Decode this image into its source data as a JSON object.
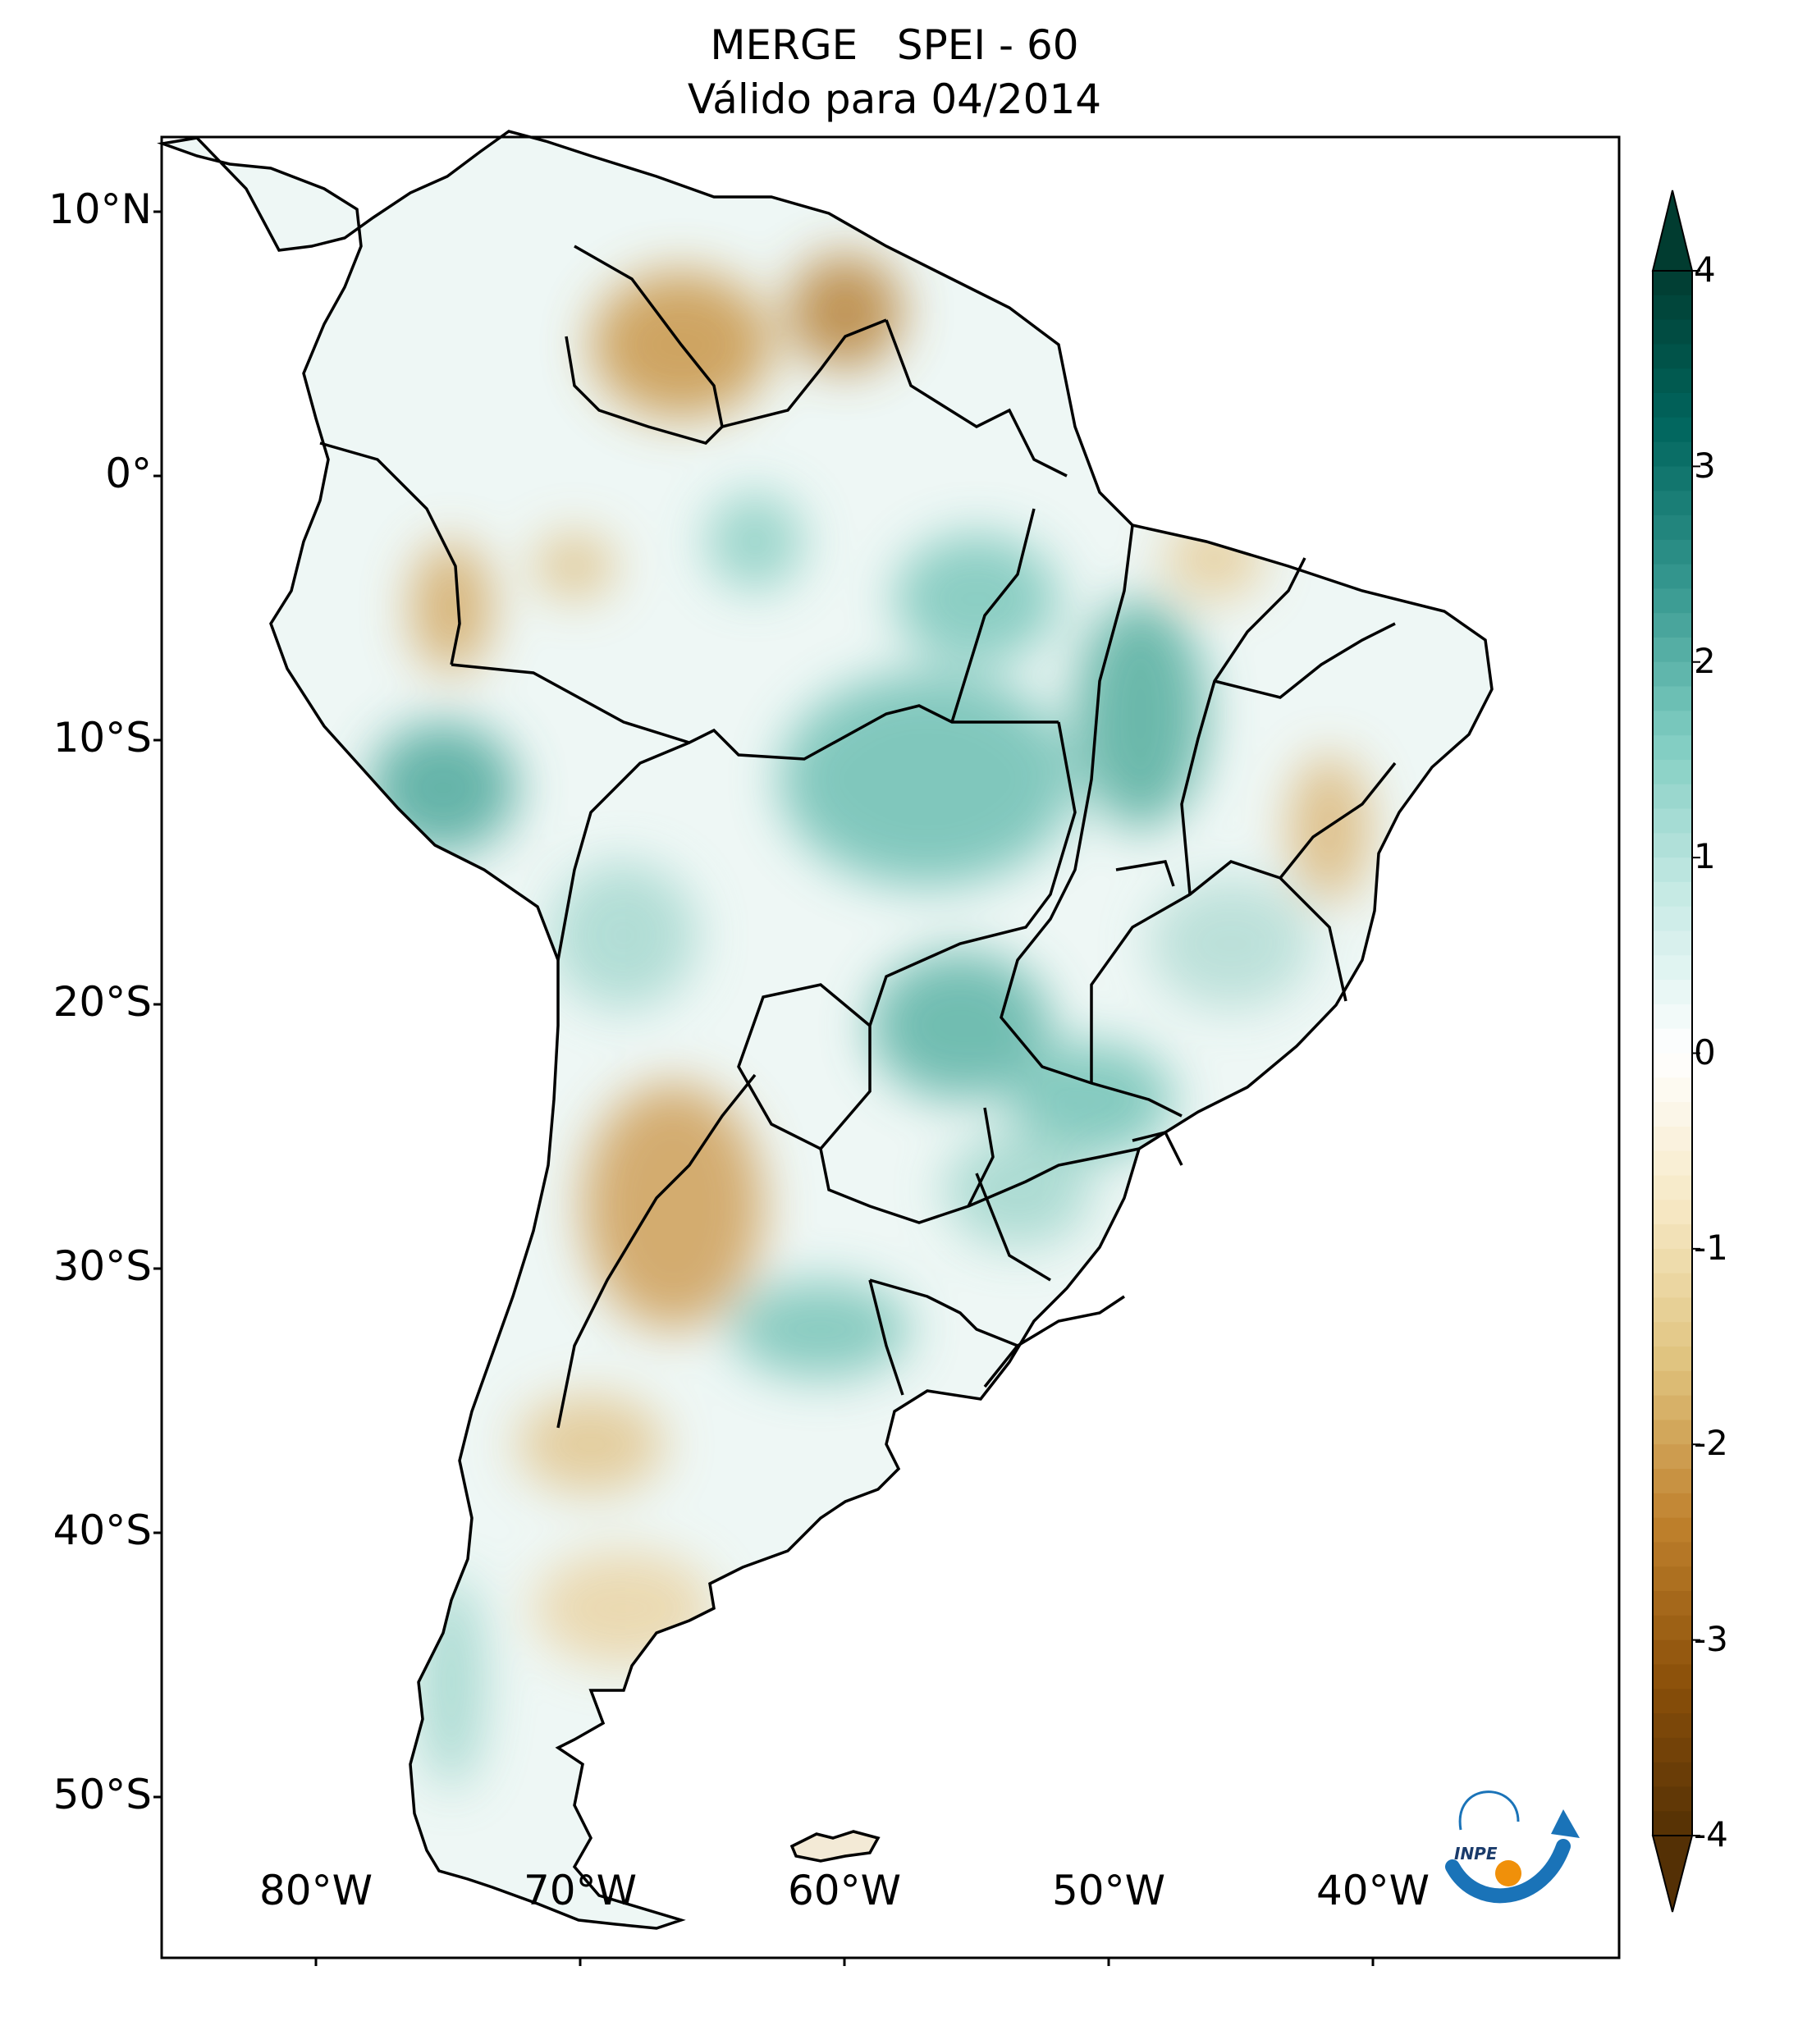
{
  "title": {
    "line1": "MERGE   SPEI - 60",
    "line2": "Válido para 04/2014"
  },
  "lat_labels": [
    "10°N",
    "0°",
    "10°S",
    "20°S",
    "30°S",
    "40°S",
    "50°S"
  ],
  "lon_labels": [
    "80°W",
    "70°W",
    "60°W",
    "50°W",
    "40°W"
  ],
  "colorbar": {
    "ticks": [
      "4",
      "3",
      "2",
      "1",
      "0",
      "-1",
      "-2",
      "-3",
      "-4"
    ],
    "colors": [
      "#013c30",
      "#01665e",
      "#35978f",
      "#80cdc1",
      "#c7eae5",
      "#ffffff",
      "#f6e8c3",
      "#dfc27d",
      "#bf812d",
      "#8c510a",
      "#543005"
    ]
  },
  "logo": {
    "text": "INPE",
    "arrow_color": "#1a73b8",
    "dot_color": "#f0900a"
  },
  "colors": {
    "wet": "#5fb8ab",
    "dry": "#d2a55a",
    "border": "#000000"
  }
}
